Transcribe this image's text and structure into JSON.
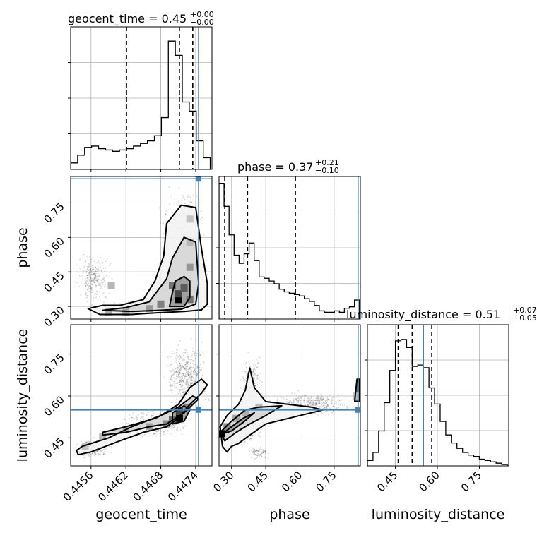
{
  "chart_data": {
    "type": "corner",
    "parameters": [
      "geocent_time",
      "phase",
      "luminosity_distance"
    ],
    "axis_labels": {
      "geocent_time": "geocent_time",
      "phase": "phase",
      "luminosity_distance": "luminosity_distance"
    },
    "ranges": {
      "geocent_time": [
        0.44525,
        0.44768
      ],
      "phase": [
        0.245,
        0.865
      ],
      "luminosity_distance": [
        0.35,
        0.855
      ]
    },
    "ticks": {
      "geocent_time": [
        0.4456,
        0.4462,
        0.4468,
        0.4474
      ],
      "phase": [
        0.3,
        0.45,
        0.6,
        0.75
      ],
      "luminosity_distance": [
        0.45,
        0.6,
        0.75
      ]
    },
    "tick_labels": {
      "geocent_time": [
        "0.4456",
        "0.4462",
        "0.4468",
        "0.4474"
      ],
      "phase": [
        "0.30",
        "0.45",
        "0.60",
        "0.75"
      ],
      "luminosity_distance": [
        "0.45",
        "0.60",
        "0.75"
      ]
    },
    "injection": {
      "geocent_time": 0.44745,
      "phase": 0.855,
      "luminosity_distance": 0.55
    },
    "titles": {
      "geocent_time": {
        "text": "geocent_time = 0.45",
        "sup": "+0.00",
        "sub": "−0.00"
      },
      "phase": {
        "text": "phase = 0.37",
        "sup": "+0.21",
        "sub": "−0.10"
      },
      "luminosity_distance": {
        "text": "luminosity_distance = 0.51",
        "sup": "+0.07",
        "sub": "−0.05"
      }
    },
    "quantiles": {
      "geocent_time": [
        0.44621,
        0.44712,
        0.44735
      ],
      "phase": [
        0.27,
        0.37,
        0.58
      ],
      "luminosity_distance": [
        0.46,
        0.51,
        0.58
      ]
    },
    "histograms": {
      "geocent_time": {
        "edges": [
          0.44525,
          0.44537,
          0.44549,
          0.44561,
          0.44573,
          0.44585,
          0.44597,
          0.44609,
          0.44621,
          0.44633,
          0.44645,
          0.44657,
          0.44669,
          0.44681,
          0.44693,
          0.44705,
          0.44717,
          0.44729,
          0.44741,
          0.44753,
          0.44765
        ],
        "counts": [
          0.05,
          0.11,
          0.17,
          0.18,
          0.16,
          0.15,
          0.14,
          0.15,
          0.16,
          0.18,
          0.2,
          0.22,
          0.26,
          0.4,
          0.99,
          0.88,
          0.52,
          0.45,
          0.22,
          0.09
        ],
        "ylim": [
          0,
          1.1
        ]
      },
      "phase": {
        "edges": [
          0.245,
          0.267,
          0.289,
          0.311,
          0.333,
          0.355,
          0.377,
          0.399,
          0.421,
          0.443,
          0.465,
          0.487,
          0.509,
          0.531,
          0.553,
          0.575,
          0.597,
          0.619,
          0.641,
          0.663,
          0.685,
          0.707,
          0.729,
          0.751,
          0.773,
          0.795,
          0.817,
          0.839,
          0.861
        ],
        "counts": [
          1.0,
          0.83,
          0.62,
          0.47,
          0.41,
          0.48,
          0.56,
          0.43,
          0.31,
          0.3,
          0.28,
          0.26,
          0.22,
          0.2,
          0.19,
          0.18,
          0.17,
          0.15,
          0.13,
          0.1,
          0.06,
          0.05,
          0.05,
          0.06,
          0.05,
          0.08,
          0.09,
          0.14
        ],
        "ylim": [
          0,
          1.05
        ]
      },
      "luminosity_distance": {
        "edges": [
          0.35,
          0.37,
          0.39,
          0.41,
          0.43,
          0.45,
          0.47,
          0.49,
          0.51,
          0.53,
          0.55,
          0.57,
          0.59,
          0.61,
          0.63,
          0.65,
          0.67,
          0.69,
          0.71,
          0.73,
          0.75,
          0.77,
          0.79,
          0.81,
          0.83,
          0.85
        ],
        "counts": [
          0.04,
          0.1,
          0.26,
          0.47,
          0.71,
          0.93,
          0.94,
          0.88,
          0.74,
          0.75,
          0.73,
          0.58,
          0.46,
          0.33,
          0.23,
          0.17,
          0.13,
          0.1,
          0.08,
          0.07,
          0.05,
          0.04,
          0.03,
          0.02,
          0.01
        ],
        "ylim": [
          0,
          1.05
        ]
      }
    },
    "pairs": [
      {
        "x": "geocent_time",
        "y": "phase",
        "contours": [
          [
            [
              0.44555,
              0.29
            ],
            [
              0.44575,
              0.265
            ],
            [
              0.4463,
              0.265
            ],
            [
              0.4467,
              0.272
            ],
            [
              0.4472,
              0.278
            ],
            [
              0.4475,
              0.285
            ],
            [
              0.4476,
              0.31
            ],
            [
              0.4476,
              0.4
            ],
            [
              0.4475,
              0.55
            ],
            [
              0.4474,
              0.73
            ],
            [
              0.44715,
              0.74
            ],
            [
              0.4469,
              0.66
            ],
            [
              0.44685,
              0.52
            ],
            [
              0.4467,
              0.41
            ],
            [
              0.4465,
              0.33
            ],
            [
              0.4461,
              0.305
            ],
            [
              0.4458,
              0.305
            ],
            [
              0.44555,
              0.29
            ]
          ],
          [
            [
              0.4458,
              0.283
            ],
            [
              0.4463,
              0.278
            ],
            [
              0.4467,
              0.282
            ],
            [
              0.44715,
              0.288
            ],
            [
              0.4474,
              0.31
            ],
            [
              0.44745,
              0.4
            ],
            [
              0.4474,
              0.58
            ],
            [
              0.4472,
              0.6
            ],
            [
              0.447,
              0.51
            ],
            [
              0.4469,
              0.42
            ],
            [
              0.4466,
              0.32
            ],
            [
              0.4462,
              0.295
            ],
            [
              0.4458,
              0.283
            ]
          ],
          [
            [
              0.44695,
              0.3
            ],
            [
              0.4472,
              0.3
            ],
            [
              0.4473,
              0.34
            ],
            [
              0.4473,
              0.41
            ],
            [
              0.4472,
              0.43
            ],
            [
              0.44705,
              0.41
            ],
            [
              0.447,
              0.36
            ],
            [
              0.44695,
              0.3
            ]
          ]
        ],
        "hist2d": [
          {
            "x": 0.4471,
            "y": 0.33,
            "density": 1.0
          },
          {
            "x": 0.4471,
            "y": 0.355,
            "density": 0.7
          },
          {
            "x": 0.4472,
            "y": 0.38,
            "density": 0.6
          },
          {
            "x": 0.447,
            "y": 0.39,
            "density": 0.5
          },
          {
            "x": 0.4473,
            "y": 0.33,
            "density": 0.5
          },
          {
            "x": 0.4468,
            "y": 0.31,
            "density": 0.45
          },
          {
            "x": 0.4466,
            "y": 0.29,
            "density": 0.35
          },
          {
            "x": 0.4473,
            "y": 0.47,
            "density": 0.35
          },
          {
            "x": 0.4462,
            "y": 0.275,
            "density": 0.3
          },
          {
            "x": 0.4459,
            "y": 0.275,
            "density": 0.25
          },
          {
            "x": 0.4473,
            "y": 0.58,
            "density": 0.2
          },
          {
            "x": 0.4473,
            "y": 0.68,
            "density": 0.15
          },
          {
            "x": 0.44595,
            "y": 0.39,
            "density": 0.2
          }
        ]
      },
      {
        "x": "geocent_time",
        "y": "luminosity_distance",
        "contours": [
          [
            [
              0.44538,
              0.39
            ],
            [
              0.4456,
              0.4
            ],
            [
              0.4461,
              0.44
            ],
            [
              0.4465,
              0.47
            ],
            [
              0.4469,
              0.49
            ],
            [
              0.4471,
              0.52
            ],
            [
              0.4473,
              0.57
            ],
            [
              0.4475,
              0.61
            ],
            [
              0.4476,
              0.64
            ],
            [
              0.4475,
              0.66
            ],
            [
              0.4473,
              0.63
            ],
            [
              0.4471,
              0.57
            ],
            [
              0.4468,
              0.53
            ],
            [
              0.4463,
              0.49
            ],
            [
              0.4459,
              0.45
            ],
            [
              0.44545,
              0.42
            ],
            [
              0.44535,
              0.405
            ],
            [
              0.44538,
              0.39
            ]
          ],
          [
            [
              0.4458,
              0.46
            ],
            [
              0.4462,
              0.47
            ],
            [
              0.4466,
              0.49
            ],
            [
              0.4469,
              0.5
            ],
            [
              0.4472,
              0.54
            ],
            [
              0.44745,
              0.59
            ],
            [
              0.44735,
              0.6
            ],
            [
              0.4471,
              0.56
            ],
            [
              0.4467,
              0.52
            ],
            [
              0.4462,
              0.49
            ],
            [
              0.4458,
              0.47
            ],
            [
              0.4458,
              0.46
            ]
          ],
          [
            [
              0.447,
              0.5
            ],
            [
              0.4472,
              0.51
            ],
            [
              0.4473,
              0.55
            ],
            [
              0.4472,
              0.565
            ],
            [
              0.447,
              0.54
            ],
            [
              0.447,
              0.5
            ]
          ]
        ],
        "hist2d": [
          {
            "x": 0.44712,
            "y": 0.52,
            "density": 1.0
          },
          {
            "x": 0.44712,
            "y": 0.545,
            "density": 0.7
          },
          {
            "x": 0.447,
            "y": 0.515,
            "density": 0.55
          },
          {
            "x": 0.44725,
            "y": 0.56,
            "density": 0.45
          },
          {
            "x": 0.4469,
            "y": 0.5,
            "density": 0.4
          },
          {
            "x": 0.4466,
            "y": 0.49,
            "density": 0.3
          },
          {
            "x": 0.4462,
            "y": 0.48,
            "density": 0.25
          },
          {
            "x": 0.4458,
            "y": 0.455,
            "density": 0.2
          },
          {
            "x": 0.4455,
            "y": 0.42,
            "density": 0.15
          }
        ]
      },
      {
        "x": "phase",
        "y": "luminosity_distance",
        "contours": [
          [
            [
              0.25,
              0.49
            ],
            [
              0.28,
              0.53
            ],
            [
              0.33,
              0.57
            ],
            [
              0.36,
              0.62
            ],
            [
              0.38,
              0.7
            ],
            [
              0.4,
              0.63
            ],
            [
              0.45,
              0.58
            ],
            [
              0.55,
              0.57
            ],
            [
              0.65,
              0.56
            ],
            [
              0.7,
              0.55
            ],
            [
              0.6,
              0.53
            ],
            [
              0.45,
              0.5
            ],
            [
              0.38,
              0.46
            ],
            [
              0.33,
              0.43
            ],
            [
              0.3,
              0.42
            ],
            [
              0.28,
              0.4
            ],
            [
              0.26,
              0.42
            ],
            [
              0.25,
              0.49
            ]
          ],
          [
            [
              0.25,
              0.47
            ],
            [
              0.3,
              0.51
            ],
            [
              0.36,
              0.55
            ],
            [
              0.42,
              0.56
            ],
            [
              0.52,
              0.565
            ],
            [
              0.45,
              0.53
            ],
            [
              0.38,
              0.5
            ],
            [
              0.32,
              0.47
            ],
            [
              0.27,
              0.44
            ],
            [
              0.25,
              0.47
            ]
          ],
          [
            [
              0.26,
              0.465
            ],
            [
              0.3,
              0.49
            ],
            [
              0.35,
              0.52
            ],
            [
              0.4,
              0.54
            ],
            [
              0.35,
              0.505
            ],
            [
              0.3,
              0.475
            ],
            [
              0.26,
              0.465
            ]
          ],
          [
            [
              0.84,
              0.58
            ],
            [
              0.85,
              0.66
            ],
            [
              0.862,
              0.66
            ],
            [
              0.862,
              0.58
            ],
            [
              0.84,
              0.58
            ]
          ]
        ],
        "hist2d": [
          {
            "x": 0.255,
            "y": 0.465,
            "density": 1.0
          },
          {
            "x": 0.28,
            "y": 0.49,
            "density": 0.4
          },
          {
            "x": 0.32,
            "y": 0.52,
            "density": 0.3
          },
          {
            "x": 0.36,
            "y": 0.54,
            "density": 0.25
          },
          {
            "x": 0.42,
            "y": 0.56,
            "density": 0.2
          },
          {
            "x": 0.85,
            "y": 0.6,
            "density": 0.2
          }
        ]
      }
    ],
    "scatter_regions": [
      {
        "pair": 0,
        "x": [
          0.44528,
          0.446
        ],
        "y": [
          0.3,
          0.55
        ],
        "n": 260
      },
      {
        "pair": 0,
        "x": [
          0.4467,
          0.44768
        ],
        "y": [
          0.26,
          0.86
        ],
        "n": 520
      },
      {
        "pair": 0,
        "x": [
          0.4459,
          0.4472
        ],
        "y": [
          0.255,
          0.33
        ],
        "n": 300
      },
      {
        "pair": 1,
        "x": [
          0.4453,
          0.446
        ],
        "y": [
          0.37,
          0.46
        ],
        "n": 180
      },
      {
        "pair": 1,
        "x": [
          0.446,
          0.4474
        ],
        "y": [
          0.44,
          0.56
        ],
        "n": 300
      },
      {
        "pair": 1,
        "x": [
          0.4468,
          0.44768
        ],
        "y": [
          0.53,
          0.82
        ],
        "n": 520
      },
      {
        "pair": 2,
        "x": [
          0.25,
          0.45
        ],
        "y": [
          0.4,
          0.58
        ],
        "n": 300
      },
      {
        "pair": 2,
        "x": [
          0.33,
          0.45
        ],
        "y": [
          0.56,
          0.76
        ],
        "n": 180
      },
      {
        "pair": 2,
        "x": [
          0.45,
          0.86
        ],
        "y": [
          0.52,
          0.62
        ],
        "n": 420
      },
      {
        "pair": 2,
        "x": [
          0.36,
          0.48
        ],
        "y": [
          0.37,
          0.42
        ],
        "n": 80
      }
    ],
    "colors": {
      "injection": "#4682b4",
      "contour": "#000000",
      "grid": "#b0b0b0"
    }
  }
}
